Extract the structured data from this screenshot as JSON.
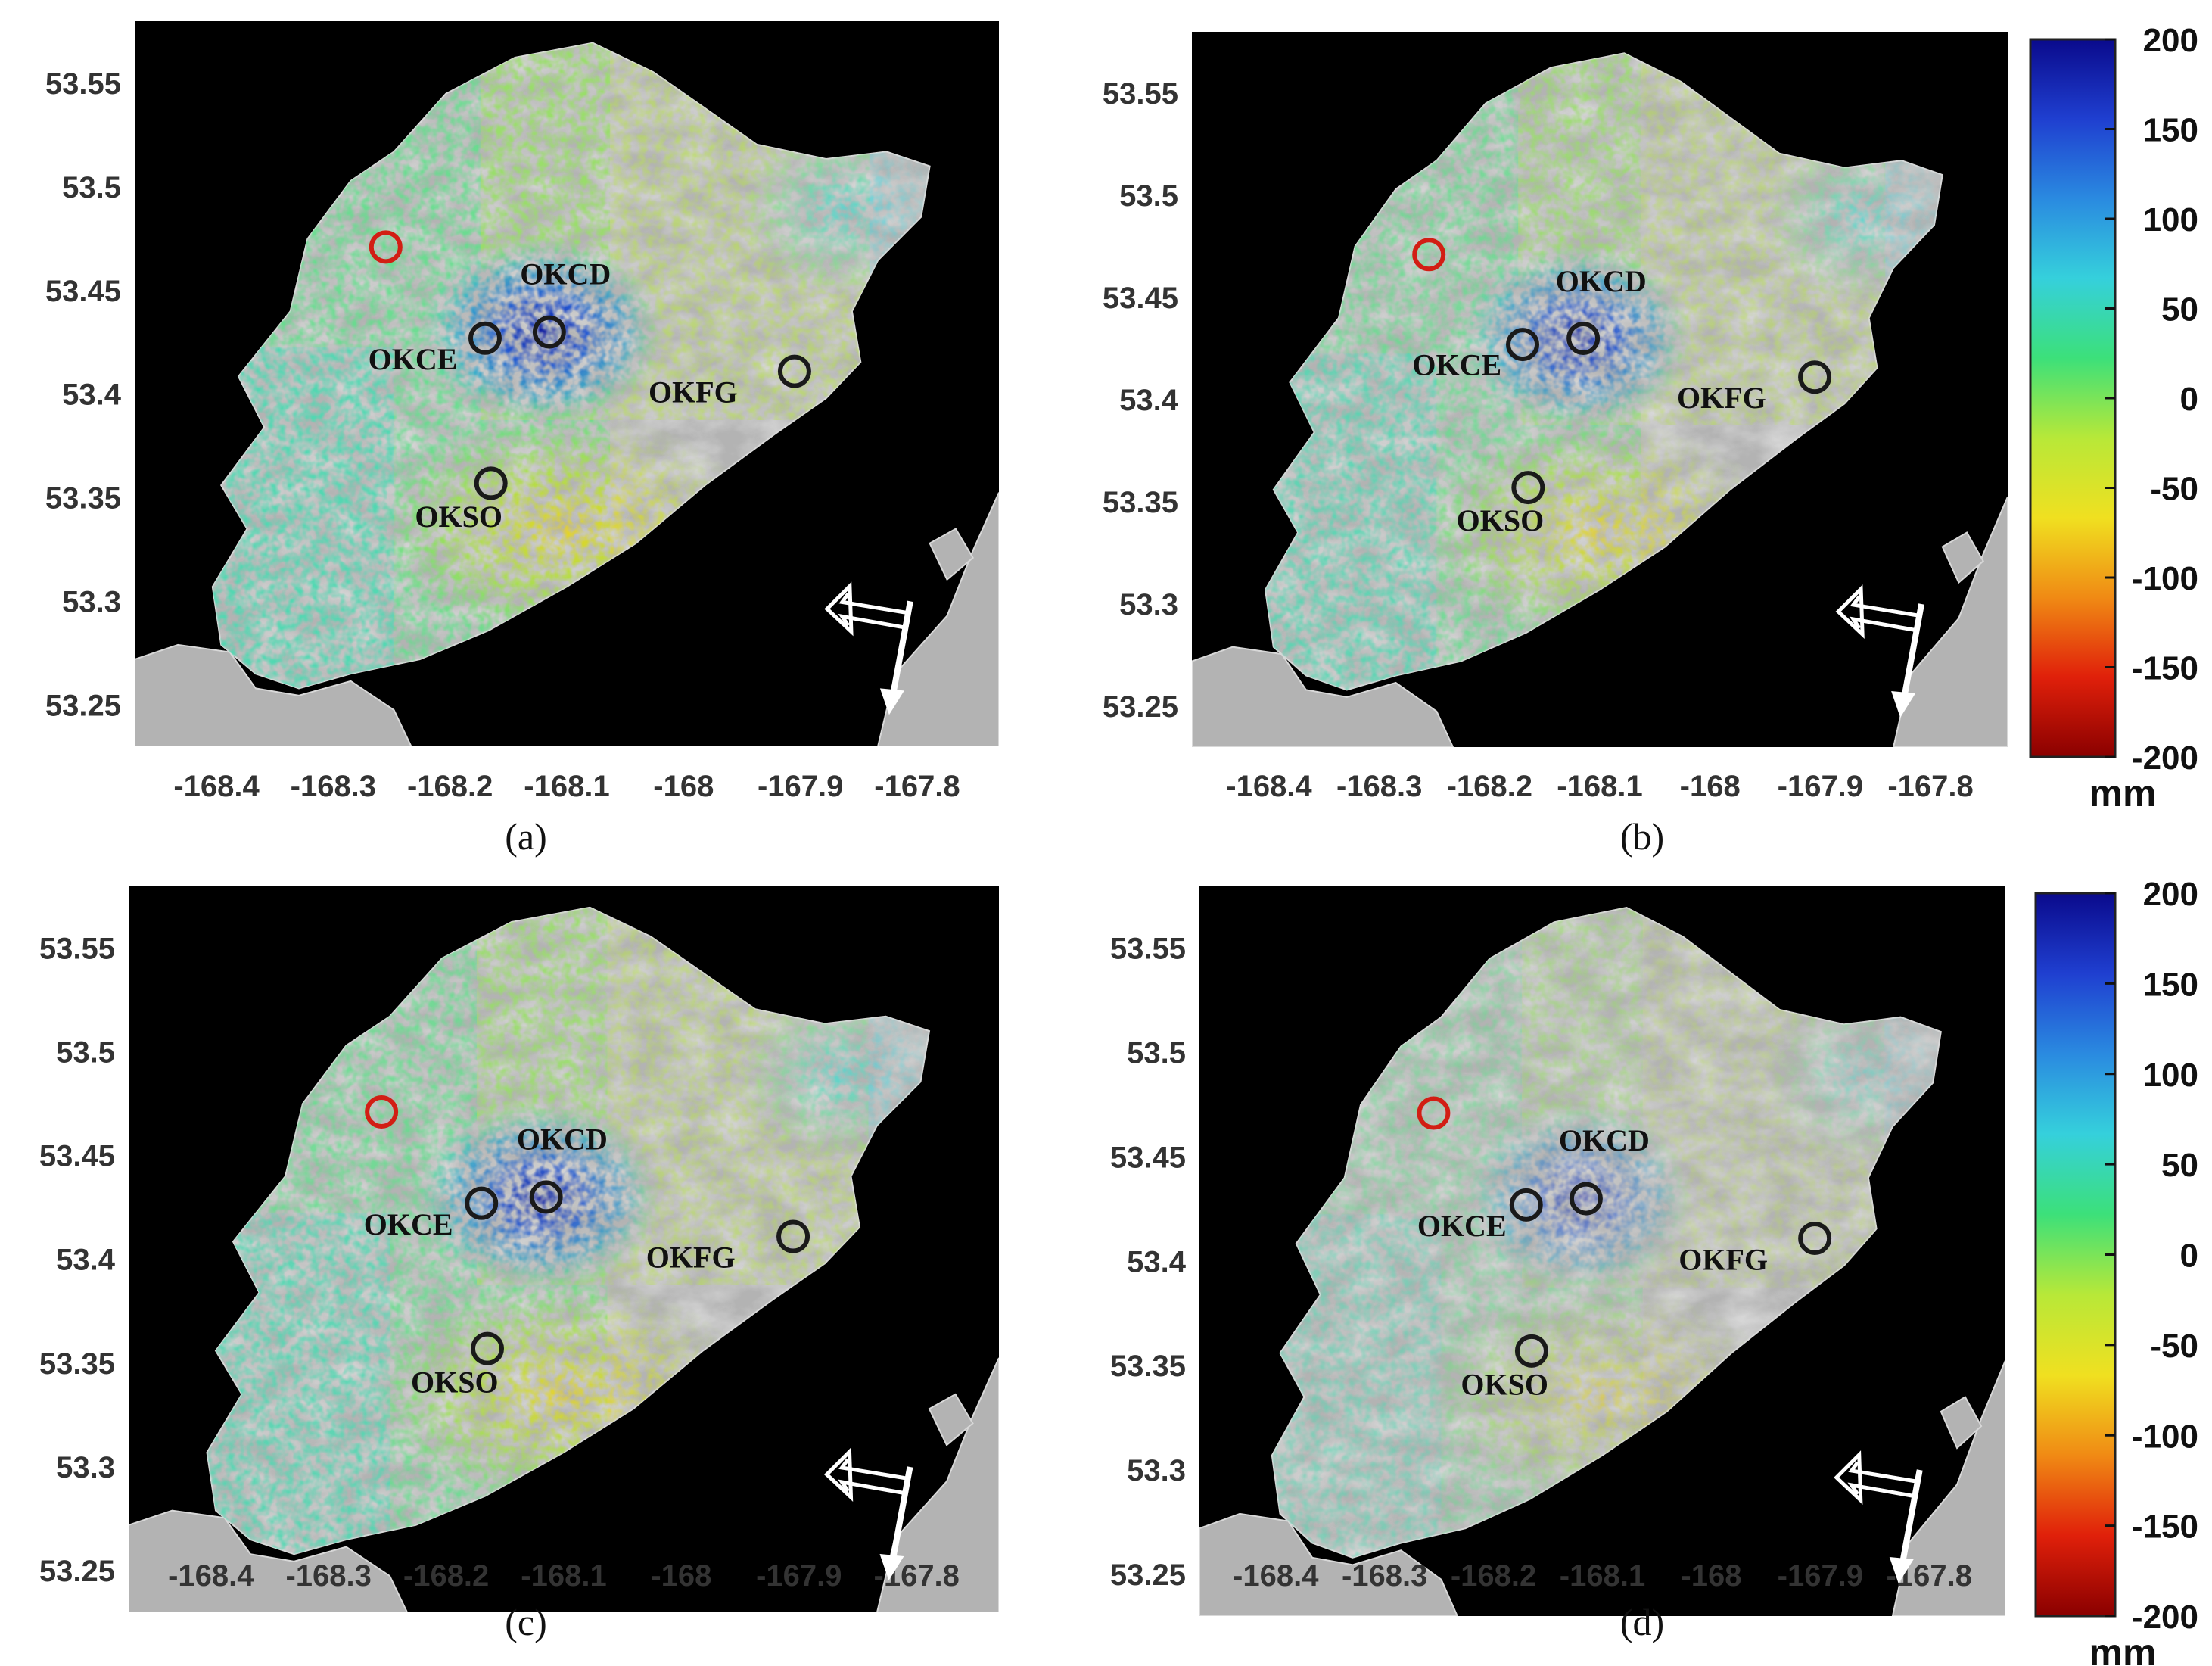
{
  "figure": {
    "panels": [
      {
        "label": "(a)",
        "label_letter": "a",
        "intensity": 1.0
      },
      {
        "label": "(b)",
        "label_letter": "b",
        "intensity": 0.85
      },
      {
        "label": "(c)",
        "label_letter": "c",
        "intensity": 0.9
      },
      {
        "label": "(d)",
        "label_letter": "d",
        "intensity": 0.55
      }
    ],
    "lon_ticks": [
      "-168.4",
      "-168.3",
      "-168.2",
      "-168.1",
      "-168",
      "-167.9",
      "-167.8"
    ],
    "lat_ticks": [
      "53.55",
      "53.5",
      "53.45",
      "53.4",
      "53.35",
      "53.3",
      "53.25"
    ],
    "lon_range": [
      -168.47,
      -167.73
    ],
    "lat_range": [
      53.23,
      53.58
    ],
    "stations": [
      {
        "name": "OKCD",
        "lon": -168.115,
        "lat": 53.43,
        "label_lon": -168.14,
        "label_lat": 53.453
      },
      {
        "name": "OKCE",
        "lon": -168.17,
        "lat": 53.427,
        "label_lon": -168.27,
        "label_lat": 53.412
      },
      {
        "name": "OKFG",
        "lon": -167.905,
        "lat": 53.411,
        "label_lon": -168.03,
        "label_lat": 53.396
      },
      {
        "name": "OKSO",
        "lon": -168.165,
        "lat": 53.357,
        "label_lon": -168.23,
        "label_lat": 53.336
      }
    ],
    "reference_point": {
      "lon": -168.255,
      "lat": 53.471,
      "color": "#d21e14"
    },
    "colorbar": {
      "unit": "mm",
      "ticks": [
        "200",
        "150",
        "100",
        "50",
        "0",
        "-50",
        "-100",
        "-150",
        "-200"
      ],
      "range": [
        -200,
        200
      ],
      "stops": [
        "#0a0a8c",
        "#1f3fd0",
        "#2a8ae0",
        "#35d0dc",
        "#3ce07a",
        "#b8e838",
        "#f0e020",
        "#f08a14",
        "#e0200a",
        "#8a0000"
      ]
    },
    "colors": {
      "sea": "#000000",
      "land": "#b3b3b3",
      "station_ring": "#1a1a1a",
      "arrow": "#ffffff"
    }
  }
}
